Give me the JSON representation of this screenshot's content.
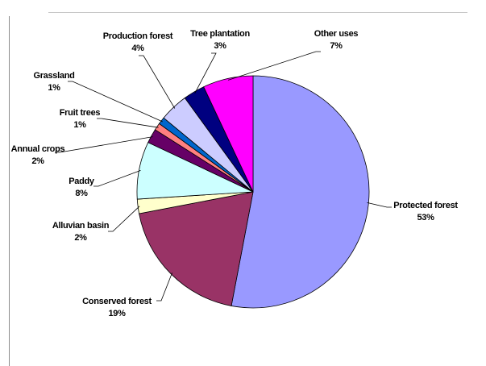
{
  "chart_data": {
    "type": "pie",
    "title": "",
    "start_angle_deg": 0,
    "direction": "clockwise",
    "legend": "none",
    "slices": [
      {
        "category": "Protected forest",
        "value": 53,
        "value_label": "53%",
        "color": "#9999ff"
      },
      {
        "category": "Conserved forest",
        "value": 19,
        "value_label": "19%",
        "color": "#993366"
      },
      {
        "category": "Alluvian basin",
        "value": 2,
        "value_label": "2%",
        "color": "#ffffcc"
      },
      {
        "category": "Paddy",
        "value": 8,
        "value_label": "8%",
        "color": "#ccffff"
      },
      {
        "category": "Annual crops",
        "value": 2,
        "value_label": "2%",
        "color": "#660066"
      },
      {
        "category": "Fruit trees",
        "value": 1,
        "value_label": "1%",
        "color": "#ff8080"
      },
      {
        "category": "Grassland",
        "value": 1,
        "value_label": "1%",
        "color": "#0066cc"
      },
      {
        "category": "Production forest",
        "value": 4,
        "value_label": "4%",
        "color": "#ccccff"
      },
      {
        "category": "Tree plantation",
        "value": 3,
        "value_label": "3%",
        "color": "#000080"
      },
      {
        "category": "Other uses",
        "value": 7,
        "value_label": "7%",
        "color": "#ff00ff"
      }
    ]
  }
}
